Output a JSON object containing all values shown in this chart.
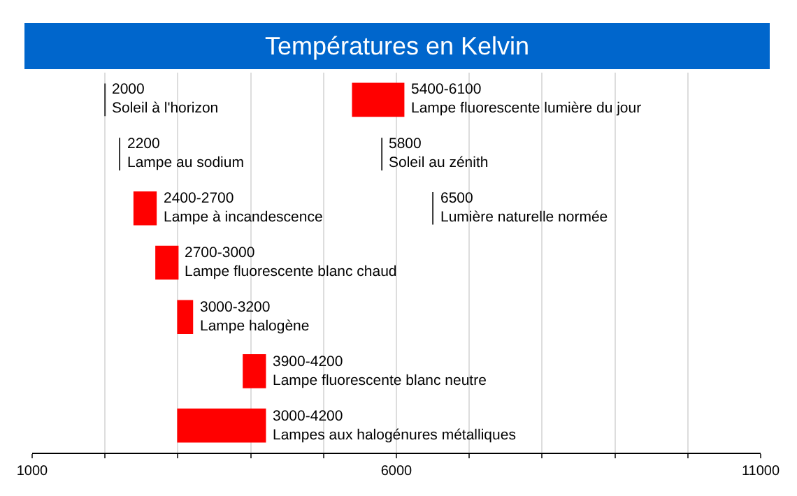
{
  "chart_data": {
    "type": "bar",
    "title": "Températures en Kelvin",
    "orientation": "horizontal",
    "categories": [
      null,
      null,
      null,
      null,
      null,
      null,
      null
    ],
    "series": [
      {
        "color": "#ff0000",
        "values": [
          700,
          null,
          300,
          300,
          200,
          300,
          1200
        ],
        "base": [
          5400,
          null,
          2400,
          2700,
          3000,
          3900,
          3000
        ],
        "value_labels": [
          "5400-6100\nLampe fluorescente lumière du jour",
          null,
          "2400-2700\nLampe à incandescence",
          "2700-3000\nLampe fluorescente blanc chaud",
          "3000-3200\nLampe halogène",
          "3900-4200\nLampe fluorescente blanc neutre",
          "3000-4200\nLampes aux halogénures métalliques"
        ]
      },
      {
        "color": "#333333",
        "values": [
          0,
          0,
          null,
          null,
          null,
          null,
          null
        ],
        "base": [
          2000,
          2200,
          null,
          null,
          null,
          null,
          null
        ],
        "value_labels": [
          "2000\nSoleil à l'horizon",
          "2200\nLampe au sodium",
          null,
          null,
          null,
          null,
          null
        ]
      },
      {
        "color": "#333333",
        "values": [
          null,
          0,
          0,
          null,
          null,
          null,
          null
        ],
        "base": [
          null,
          5800,
          6500,
          null,
          null,
          null,
          null
        ],
        "value_labels": [
          null,
          "5800\nSoleil au zénith",
          "6500\nLumière naturelle normée",
          null,
          null,
          null,
          null
        ]
      }
    ],
    "xlim": [
      1000,
      11000
    ],
    "xticks": [
      1000,
      {
        "value": 2000,
        "label": null
      },
      {
        "value": 3000,
        "label": null
      },
      {
        "value": 4000,
        "label": null
      },
      {
        "value": 5000,
        "label": null
      },
      6000,
      {
        "value": 7000,
        "label": null
      },
      {
        "value": 8000,
        "label": null
      },
      {
        "value": 9000,
        "label": null
      },
      {
        "value": 10000,
        "label": null
      },
      11000
    ],
    "grid": "x",
    "tick_labels": "x"
  }
}
